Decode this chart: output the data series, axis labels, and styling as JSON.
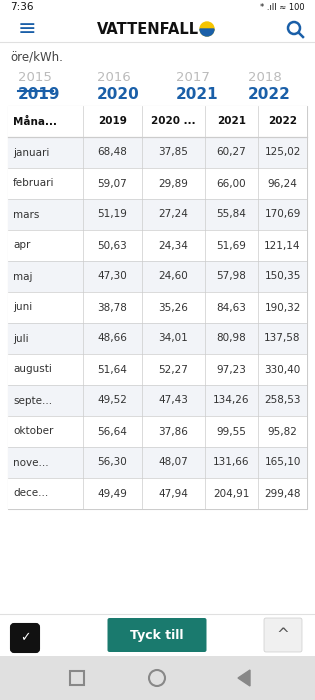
{
  "status_bar_time": "7:36",
  "app_name": "VATTENFALL",
  "subtitle": "öre/kWh.",
  "year_tabs_gray": [
    "2015",
    "2016",
    "2017",
    "2018"
  ],
  "year_tabs_blue": [
    "2019",
    "2020",
    "2021",
    "2022"
  ],
  "col_headers": [
    "Måna...",
    "2019",
    "2020 ...",
    "2021",
    "2022"
  ],
  "months": [
    "januari",
    "februari",
    "mars",
    "apr",
    "maj",
    "juni",
    "juli",
    "augusti",
    "septe...",
    "oktober",
    "nove...",
    "dece..."
  ],
  "data": [
    [
      68.48,
      37.85,
      60.27,
      125.02
    ],
    [
      59.07,
      29.89,
      66.0,
      96.24
    ],
    [
      51.19,
      27.24,
      55.84,
      170.69
    ],
    [
      50.63,
      24.34,
      51.69,
      121.14
    ],
    [
      47.3,
      24.6,
      57.98,
      150.35
    ],
    [
      38.78,
      35.26,
      84.63,
      190.32
    ],
    [
      48.66,
      34.01,
      80.98,
      137.58
    ],
    [
      51.64,
      52.27,
      97.23,
      330.4
    ],
    [
      49.52,
      47.43,
      134.26,
      258.53
    ],
    [
      56.64,
      37.86,
      99.55,
      95.82
    ],
    [
      56.3,
      48.07,
      131.66,
      165.1
    ],
    [
      49.49,
      47.94,
      204.91,
      299.48
    ]
  ],
  "bg_color": "#ffffff",
  "row_odd_bg": "#f2f4f8",
  "row_even_bg": "#ffffff",
  "tab_blue_color": "#1a5fa8",
  "tab_gray_color": "#bbbbbb",
  "border_color": "#cccccc",
  "tyck_till_color": "#1a7a6e",
  "body_text_color": "#333333",
  "status_bar_bg": "#ffffff",
  "nav_bar_bg": "#ffffff",
  "bottom_buttons_bg": "#ffffff",
  "android_bar_bg": "#e0e0e0",
  "scroll_btn_bg": "#f0f0f0"
}
